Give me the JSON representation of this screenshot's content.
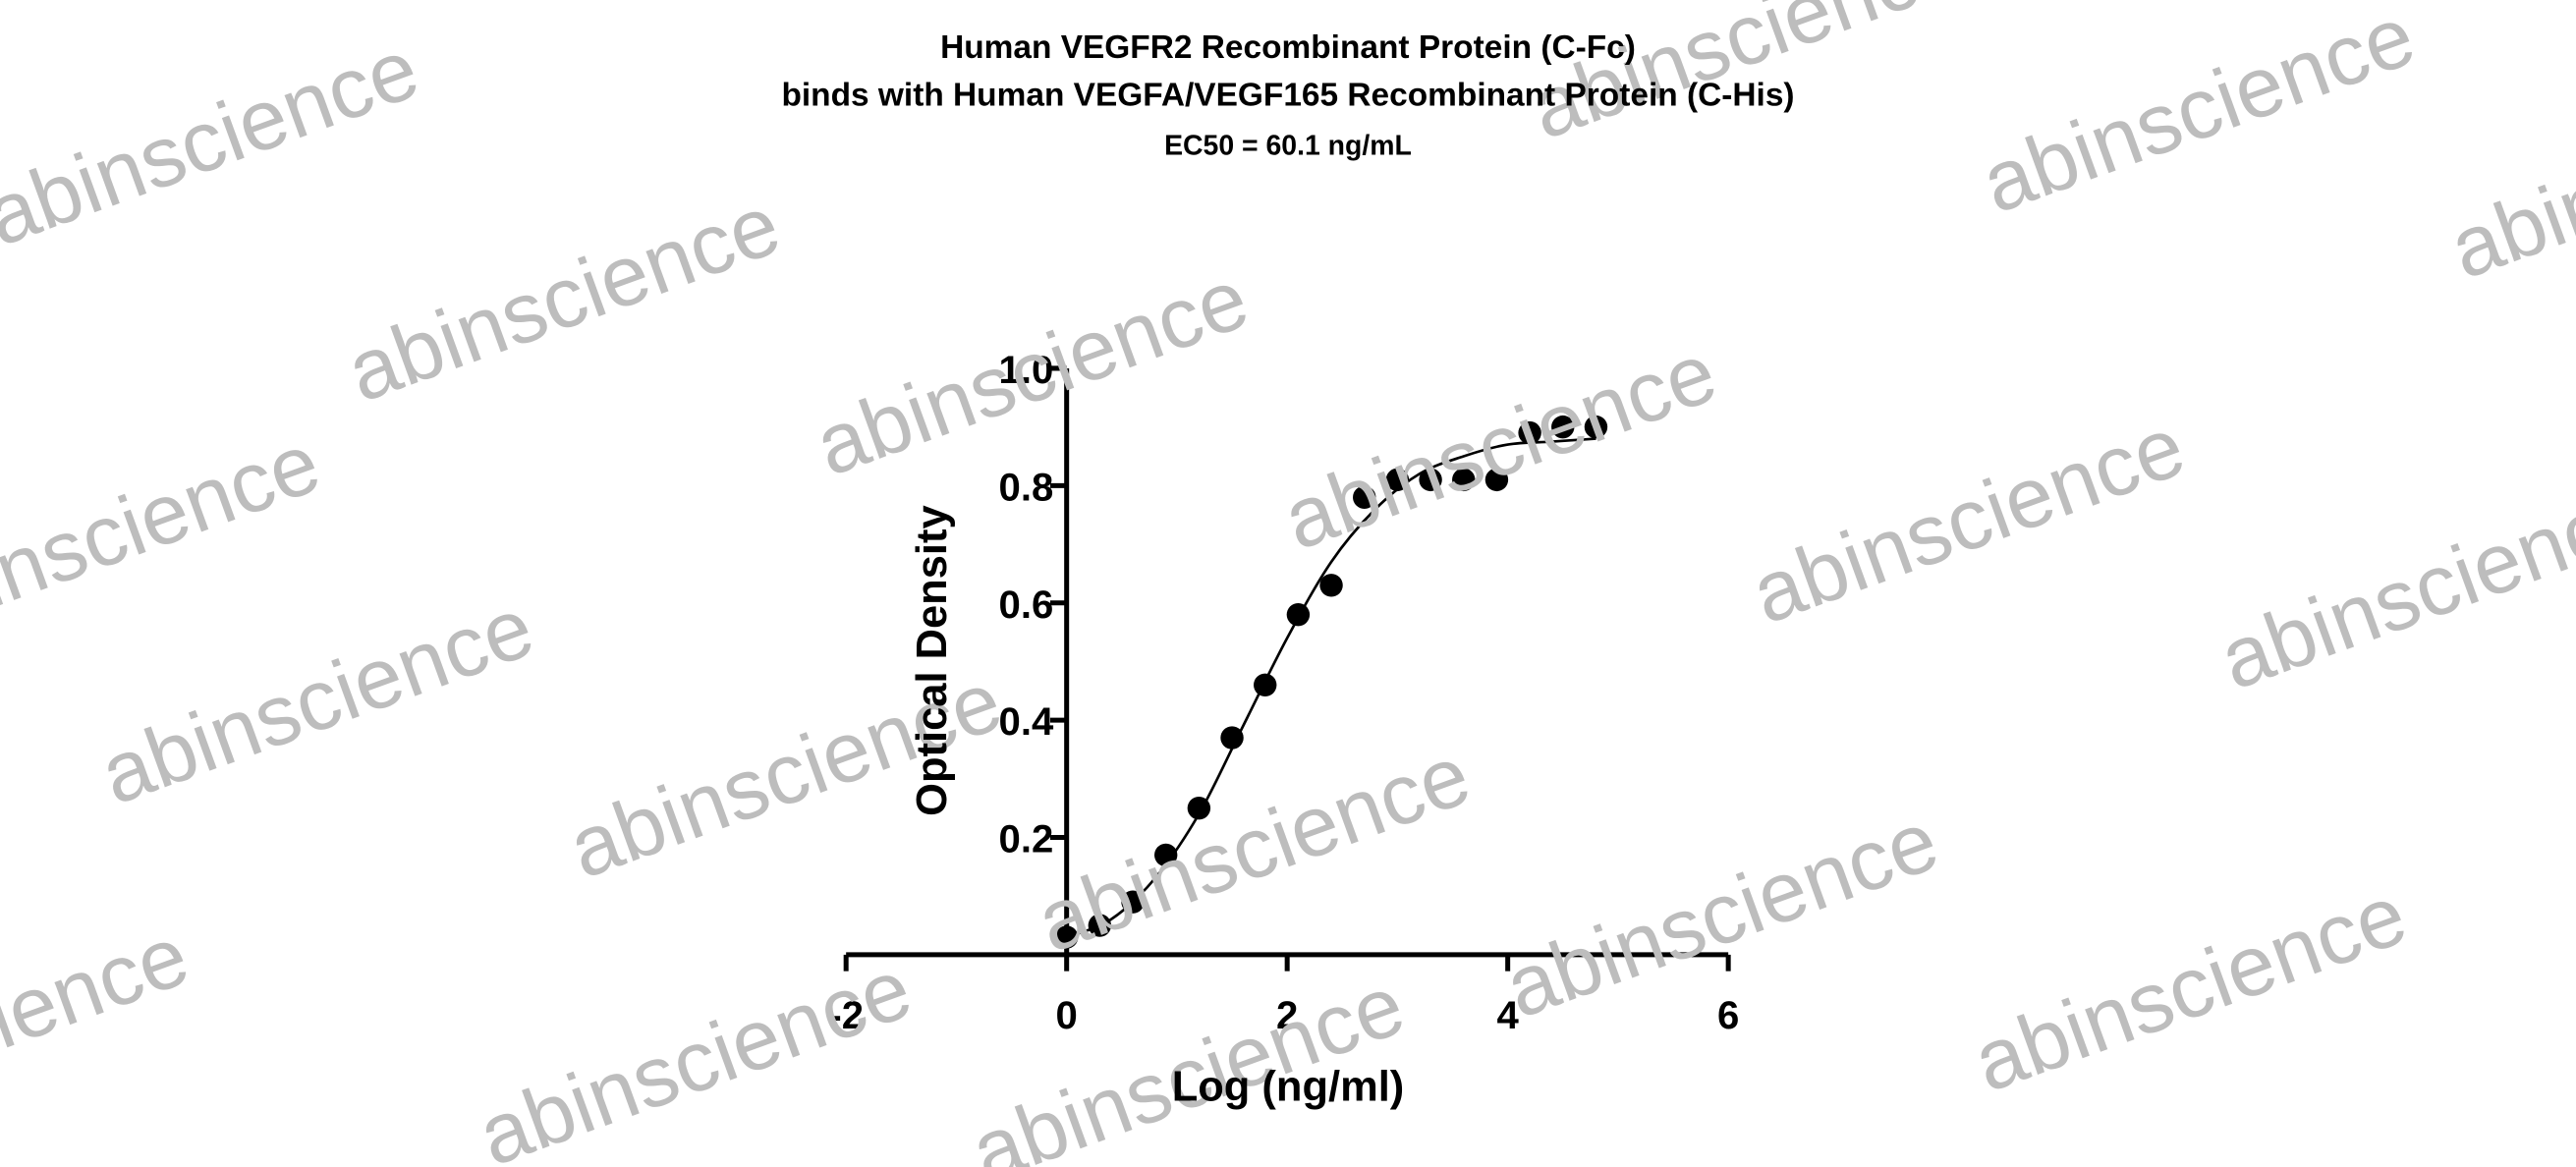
{
  "chart_data": {
    "type": "scatter",
    "title": "Human VEGFR2 Recombinant Protein (C-Fc)",
    "subtitle": "binds with Human VEGFA/VEGF165 Recombinant Protein (C-His)",
    "annotation": "EC50 = 60.1 ng/mL",
    "xlabel": "Log (ng/ml)",
    "ylabel": "Optical Density",
    "watermark": "abinscience",
    "xlim": [
      -2,
      6
    ],
    "xticks": [
      -2,
      0,
      2,
      4,
      6
    ],
    "ylim": [
      0,
      1
    ],
    "yticks": [
      0.2,
      0.4,
      0.6,
      0.8,
      {
        "value": 1,
        "label": "1.0"
      }
    ],
    "series": [
      {
        "type": "scatter",
        "color": "#000000",
        "x": [
          0,
          0.3,
          0.6,
          0.9,
          1.2,
          1.5,
          1.8,
          2.1,
          2.4,
          2.7,
          3.0,
          3.3,
          3.6,
          3.9,
          4.2,
          4.5,
          4.8
        ],
        "values": [
          0.03,
          0.05,
          0.09,
          0.17,
          0.25,
          0.37,
          0.46,
          0.58,
          0.63,
          0.78,
          0.81,
          0.81,
          0.81,
          0.81,
          0.89,
          0.9,
          0.9
        ]
      },
      {
        "type": "line",
        "color": "#000000",
        "x": [
          0,
          0.4,
          0.8,
          1.2,
          1.6,
          2.0,
          2.4,
          2.8,
          3.2,
          3.6,
          4.0,
          4.4,
          4.8
        ],
        "values": [
          0.03,
          0.06,
          0.13,
          0.24,
          0.39,
          0.54,
          0.67,
          0.76,
          0.82,
          0.85,
          0.87,
          0.875,
          0.88
        ]
      }
    ]
  }
}
